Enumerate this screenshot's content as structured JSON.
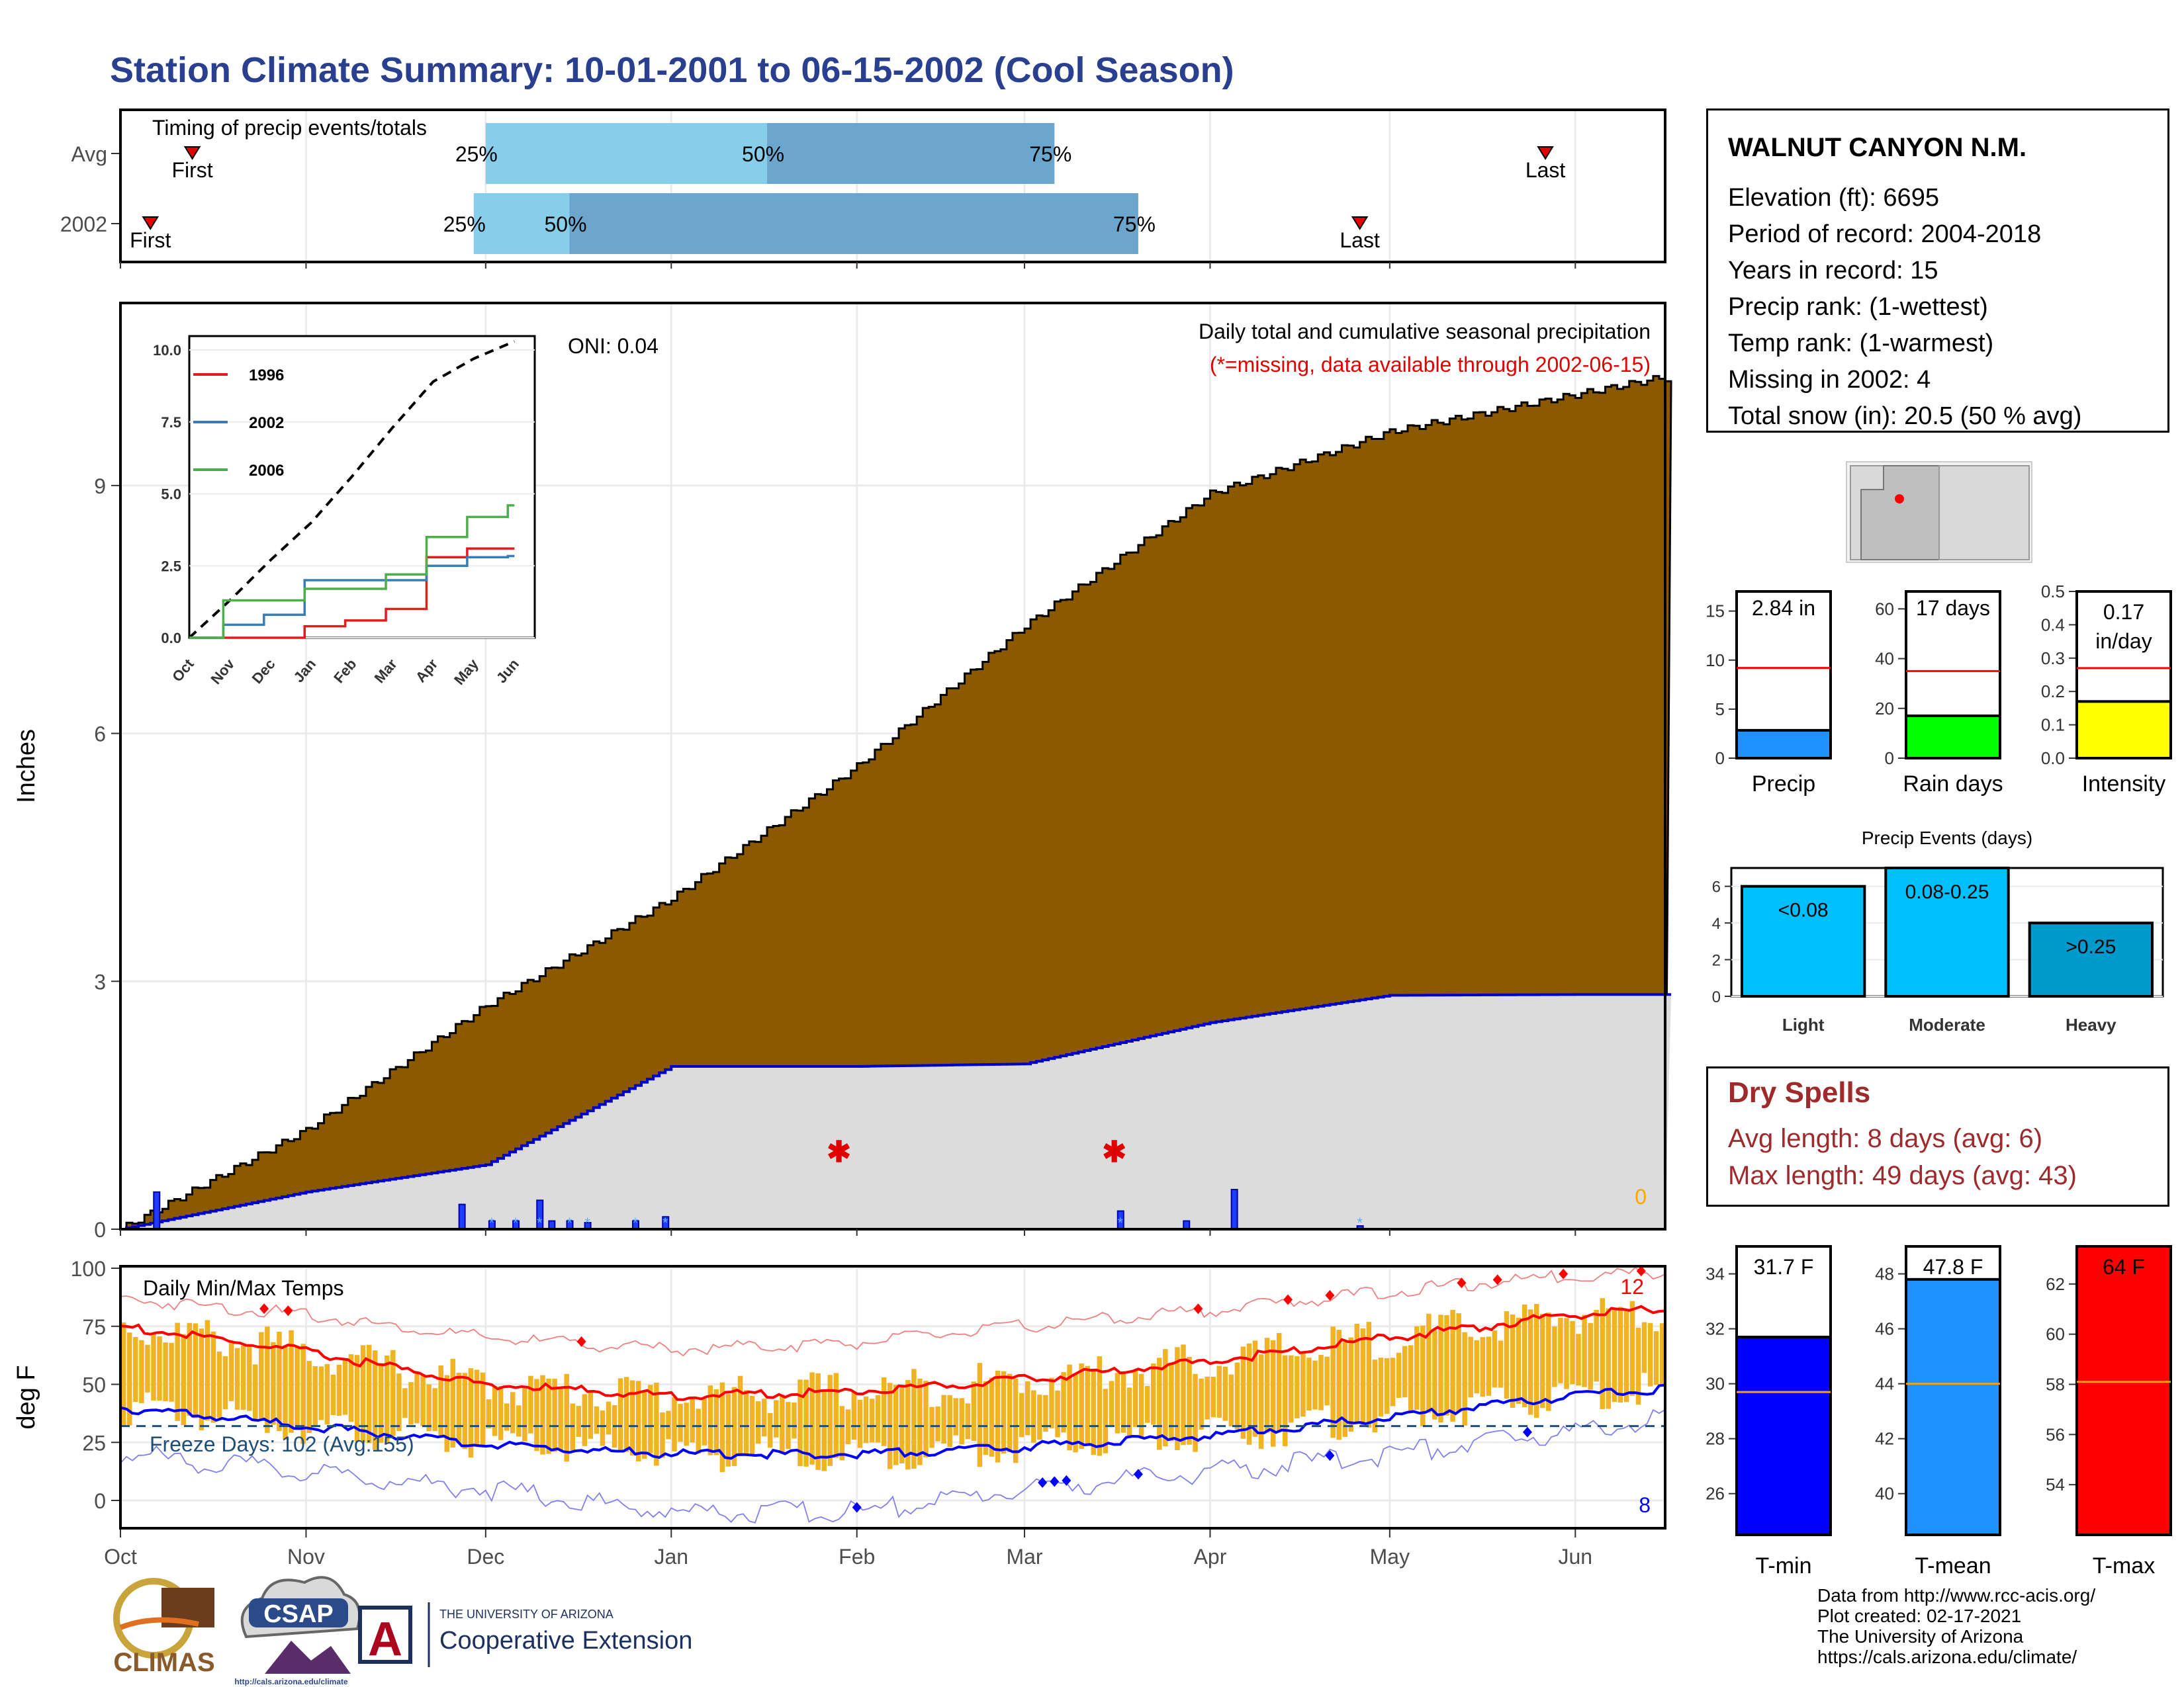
{
  "title": "Station Climate Summary: 10-01-2001 to 06-15-2002 (Cool Season)",
  "timing": {
    "title": "Timing of precip events/totals",
    "rows": [
      {
        "label": "Avg",
        "first": "2001-10-13",
        "last": "2002-05-27",
        "p25": "2001-12-01",
        "p50": "2002-01-17",
        "p75": "2002-03-06"
      },
      {
        "label": "2002",
        "first": "2001-10-06",
        "last": "2002-04-26",
        "p25": "2001-11-29",
        "p50": "2001-12-15",
        "p75": "2002-03-20"
      }
    ],
    "pct_labels": [
      "25%",
      "50%",
      "75%"
    ],
    "first_label": "First",
    "last_label": "Last"
  },
  "precip_panel": {
    "ylabel": "Inches",
    "yticks": [
      "0",
      "3",
      "6",
      "9"
    ],
    "title": "Daily total and cumulative seasonal precipitation",
    "note": "(*=missing, data available through 2002-06-15)",
    "oni": "ONI: 0.04",
    "zero_label": "0",
    "missing_dates": [
      "2002-01-29",
      "2002-03-16"
    ]
  },
  "inset": {
    "yticks": [
      "0.0",
      "2.5",
      "5.0",
      "7.5",
      "10.0"
    ],
    "months": [
      "Oct",
      "Nov",
      "Dec",
      "Jan",
      "Feb",
      "Mar",
      "Apr",
      "May",
      "Jun"
    ],
    "legend": [
      {
        "name": "1996",
        "color": "#e41a1c"
      },
      {
        "name": "2002",
        "color": "#377eb8"
      },
      {
        "name": "2006",
        "color": "#4daf4a"
      }
    ]
  },
  "temp_panel": {
    "ylabel": "deg F",
    "title": "Daily Min/Max Temps",
    "yticks": [
      "0",
      "25",
      "50",
      "75",
      "100"
    ],
    "freeze_label": "Freeze Days: 102 (Avg:155)",
    "red_count": "12",
    "blue_count": "8",
    "months": [
      "Oct",
      "Nov",
      "Dec",
      "Jan",
      "Feb",
      "Mar",
      "Apr",
      "May",
      "Jun"
    ]
  },
  "station": {
    "name": "WALNUT CANYON N.M.",
    "lines": [
      "Elevation (ft): 6695",
      "Period of record: 2004-2018",
      "Years in record: 15",
      "Precip rank:  (1-wettest)",
      "Temp rank:  (1-warmest)",
      "Missing in 2002: 4",
      "Total snow (in): 20.5 (50 % avg)"
    ]
  },
  "dry_spells": {
    "title": "Dry Spells",
    "avg_line": "Avg length: 8 days (avg: 6)",
    "max_line": "Max length: 49 days (avg: 43)"
  },
  "credits": [
    "Data from http://www.rcc-acis.org/",
    "Plot created: 02-17-2021",
    "The University of Arizona",
    "https://cals.arizona.edu/climate/"
  ],
  "logos": {
    "climas": "CLIMAS",
    "csap": "CSAP",
    "csap_url": "http://cals.arizona.edu/climate",
    "ua_top": "THE UNIVERSITY OF ARIZONA",
    "ua_bottom": "Cooperative Extension"
  },
  "colors": {
    "title": "#2a3f8f",
    "cumulative": "#8b5a00",
    "avg_cumulative": "#dcdcdc",
    "year_line": "#0000cc",
    "light_bar": "#87ceeb",
    "dark_bar": "#6aa6cd",
    "tmax": "#ff0000",
    "tmin": "#0000ff",
    "temp_bar": "#f0b323"
  },
  "chart_data": [
    {
      "type": "area",
      "name": "Cumulative precipitation",
      "x": [
        "2001-10-01",
        "2001-11-01",
        "2001-12-01",
        "2002-01-01",
        "2002-02-01",
        "2002-03-01",
        "2002-04-01",
        "2002-05-01",
        "2002-06-01",
        "2002-06-15"
      ],
      "series": [
        {
          "name": "Average",
          "values": [
            0.0,
            1.2,
            2.7,
            4.0,
            5.6,
            7.3,
            8.9,
            9.65,
            10.1,
            10.3
          ]
        },
        {
          "name": "2002",
          "values": [
            0.0,
            0.45,
            0.78,
            1.97,
            1.97,
            2.0,
            2.5,
            2.83,
            2.84,
            2.84
          ]
        }
      ],
      "ylabel": "Inches",
      "ylim": [
        0,
        11.1
      ]
    },
    {
      "type": "bar",
      "name": "Daily precipitation",
      "x": [
        "2001-10-07",
        "2001-11-27",
        "2001-12-02",
        "2001-12-06",
        "2001-12-10",
        "2001-12-12",
        "2001-12-15",
        "2001-12-18",
        "2001-12-26",
        "2001-12-31",
        "2002-03-17",
        "2002-03-28",
        "2002-04-05",
        "2002-04-26"
      ],
      "values": [
        0.45,
        0.3,
        0.1,
        0.1,
        0.35,
        0.1,
        0.1,
        0.08,
        0.1,
        0.15,
        0.22,
        0.1,
        0.48,
        0.04
      ],
      "ylabel": "Inches"
    },
    {
      "type": "line",
      "name": "Cumulative precipitation by year (inset)",
      "x": [
        "Oct",
        "Nov",
        "Dec",
        "Jan",
        "Feb",
        "Mar",
        "Apr",
        "May",
        "Jun"
      ],
      "series": [
        {
          "name": "Average",
          "values": [
            0.0,
            1.3,
            2.7,
            4.0,
            5.6,
            7.3,
            8.9,
            9.7,
            10.3
          ]
        },
        {
          "name": "1996",
          "values": [
            0.0,
            0.0,
            0.0,
            0.4,
            0.6,
            1.0,
            2.8,
            3.1,
            3.1
          ]
        },
        {
          "name": "2002",
          "values": [
            0.0,
            0.45,
            0.8,
            2.0,
            2.0,
            2.0,
            2.5,
            2.8,
            2.84
          ]
        },
        {
          "name": "2006",
          "values": [
            0.0,
            1.3,
            1.3,
            1.7,
            1.7,
            2.2,
            3.5,
            4.2,
            4.6
          ]
        }
      ],
      "ylim": [
        0,
        10
      ]
    },
    {
      "type": "line",
      "name": "Daily Min/Max Temps",
      "x": [
        "2001-10-01",
        "2001-11-01",
        "2001-12-01",
        "2002-01-01",
        "2002-02-01",
        "2002-03-01",
        "2002-04-01",
        "2002-05-01",
        "2002-06-01",
        "2002-06-15"
      ],
      "series": [
        {
          "name": "Average max",
          "values": [
            75,
            64,
            50,
            45,
            47,
            52,
            60,
            70,
            80,
            82
          ]
        },
        {
          "name": "Average min",
          "values": [
            40,
            32,
            24,
            20,
            20,
            23,
            28,
            36,
            45,
            48
          ]
        },
        {
          "name": "Record max",
          "values": [
            87,
            80,
            70,
            65,
            68,
            75,
            82,
            90,
            97,
            98
          ]
        },
        {
          "name": "Record min",
          "values": [
            20,
            12,
            5,
            -5,
            -5,
            5,
            12,
            20,
            30,
            35
          ]
        }
      ],
      "ylabel": "deg F",
      "ylim": [
        -12,
        100
      ],
      "freeze_line": 32
    },
    {
      "type": "bar",
      "name": "Seasonal precipitation",
      "categories": [
        "Precip"
      ],
      "values": [
        2.84
      ],
      "average": 9.2,
      "label": "2.84 in",
      "ylim": [
        0,
        17
      ]
    },
    {
      "type": "bar",
      "name": "Rain days",
      "categories": [
        "Rain days"
      ],
      "values": [
        17
      ],
      "average": 35,
      "label": "17 days",
      "ylim": [
        0,
        67
      ]
    },
    {
      "type": "bar",
      "name": "Intensity",
      "categories": [
        "Intensity"
      ],
      "values": [
        0.17
      ],
      "average": 0.27,
      "label": "0.17\nin/day",
      "ylim": [
        0,
        0.5
      ]
    },
    {
      "type": "bar",
      "name": "Precip Events (days)",
      "title": "Precip Events (days)",
      "categories": [
        "Light",
        "Moderate",
        "Heavy"
      ],
      "values": [
        6,
        7,
        4
      ],
      "labels": [
        "<0.08",
        "0.08-0.25",
        ">0.25"
      ],
      "ylim": [
        0,
        7
      ]
    },
    {
      "type": "bar",
      "name": "T-min",
      "categories": [
        "T-min"
      ],
      "values": [
        31.7
      ],
      "average": 29.7,
      "label": "31.7 F",
      "ylim": [
        24.5,
        35
      ]
    },
    {
      "type": "bar",
      "name": "T-mean",
      "categories": [
        "T-mean"
      ],
      "values": [
        47.8
      ],
      "average": 44,
      "label": "47.8 F",
      "ylim": [
        38.5,
        49
      ]
    },
    {
      "type": "bar",
      "name": "T-max",
      "categories": [
        "T-max"
      ],
      "values": [
        64
      ],
      "average": 58.1,
      "label": "64 F",
      "ylim": [
        52,
        63.5
      ]
    }
  ]
}
